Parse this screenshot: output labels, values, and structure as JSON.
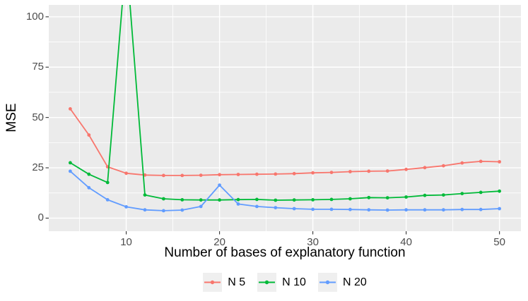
{
  "chart_data": {
    "type": "line",
    "title": "",
    "xlabel": "Number of bases of explanatory function",
    "ylabel": "MSE",
    "x": [
      4,
      6,
      8,
      10,
      12,
      14,
      16,
      18,
      20,
      22,
      24,
      26,
      28,
      30,
      32,
      34,
      36,
      38,
      40,
      42,
      44,
      46,
      48,
      50
    ],
    "series": [
      {
        "name": "N 5",
        "color": "#F8766D",
        "values": [
          54.3,
          41.3,
          25.5,
          22.3,
          21.4,
          21.2,
          21.2,
          21.3,
          21.6,
          21.7,
          21.8,
          21.9,
          22.1,
          22.5,
          22.7,
          23.1,
          23.3,
          23.4,
          24.2,
          25.1,
          26.0,
          27.4,
          28.2,
          28.0
        ]
      },
      {
        "name": "N 10",
        "color": "#00BA38",
        "values": [
          27.5,
          21.8,
          17.7,
          130,
          11.5,
          9.6,
          9.1,
          9.0,
          9.0,
          9.2,
          9.3,
          8.9,
          9.0,
          9.1,
          9.3,
          9.6,
          10.2,
          10.1,
          10.5,
          11.3,
          11.5,
          12.2,
          12.8,
          13.4
        ]
      },
      {
        "name": "N 20",
        "color": "#619CFF",
        "values": [
          23.3,
          15.1,
          9.1,
          5.6,
          4.1,
          3.7,
          4.0,
          5.8,
          16.4,
          7.0,
          5.8,
          5.2,
          4.7,
          4.4,
          4.4,
          4.3,
          4.1,
          4.0,
          4.1,
          4.1,
          4.1,
          4.3,
          4.3,
          4.7
        ]
      }
    ],
    "x_ticks": [
      10,
      20,
      30,
      40,
      50
    ],
    "y_ticks": [
      0,
      25,
      50,
      75,
      100
    ],
    "xlim": [
      1.7,
      52.3
    ],
    "ylim": [
      -6.5,
      105.9
    ],
    "grid": "major+minor",
    "legend_position": "bottom",
    "panel_bg": "#EBEBEB",
    "grid_color": "#FFFFFF",
    "tick_mark_color": "#333333",
    "tick_label_color": "#4D4D4D"
  }
}
